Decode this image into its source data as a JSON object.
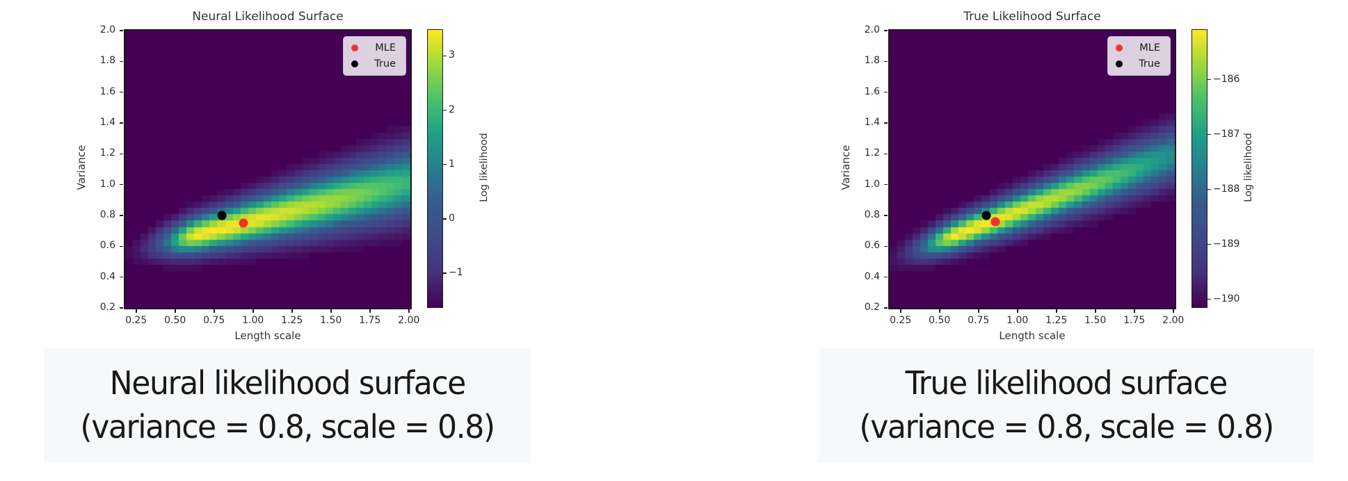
{
  "colormap": {
    "name": "viridis",
    "stops": [
      [
        0,
        "#440154"
      ],
      [
        0.13,
        "#46327e"
      ],
      [
        0.25,
        "#3f4a8a"
      ],
      [
        0.38,
        "#365c8d"
      ],
      [
        0.5,
        "#277f8e"
      ],
      [
        0.63,
        "#1fa187"
      ],
      [
        0.75,
        "#4ac16d"
      ],
      [
        0.88,
        "#a0da39"
      ],
      [
        1,
        "#fde725"
      ]
    ]
  },
  "chart_data": [
    {
      "type": "heatmap",
      "title": "Neural Likelihood Surface",
      "xlabel": "Length scale",
      "ylabel": "Variance",
      "xlim": [
        0.18,
        2.01
      ],
      "ylim": [
        0.2,
        2.0
      ],
      "x_ticks": [
        {
          "value": 0.25,
          "label": "0.25"
        },
        {
          "value": 0.5,
          "label": "0.50"
        },
        {
          "value": 0.75,
          "label": "0.75"
        },
        {
          "value": 1.0,
          "label": "1.00"
        },
        {
          "value": 1.25,
          "label": "1.25"
        },
        {
          "value": 1.5,
          "label": "1.50"
        },
        {
          "value": 1.75,
          "label": "1.75"
        },
        {
          "value": 2.0,
          "label": "2.00"
        }
      ],
      "y_ticks": [
        {
          "value": 0.2,
          "label": "0.2"
        },
        {
          "value": 0.4,
          "label": "0.4"
        },
        {
          "value": 0.6,
          "label": "0.6"
        },
        {
          "value": 0.8,
          "label": "0.8"
        },
        {
          "value": 1.0,
          "label": "1.0"
        },
        {
          "value": 1.2,
          "label": "1.2"
        },
        {
          "value": 1.4,
          "label": "1.4"
        },
        {
          "value": 1.6,
          "label": "1.6"
        },
        {
          "value": 1.8,
          "label": "1.8"
        },
        {
          "value": 2.0,
          "label": "2.0"
        }
      ],
      "legend": [
        {
          "label": "MLE",
          "color": "#ee352b"
        },
        {
          "label": "True",
          "color": "#000000"
        }
      ],
      "markers": [
        {
          "name": "MLE",
          "x": 0.94,
          "y": 0.75,
          "color": "#ee352b"
        },
        {
          "name": "True",
          "x": 0.8,
          "y": 0.8,
          "color": "#000000"
        }
      ],
      "colorbar": {
        "label": "Log likelihood",
        "vmin": -1.63,
        "vmax": 3.47,
        "ticks": [
          {
            "value": 3,
            "label": "3"
          },
          {
            "value": 2,
            "label": "2"
          },
          {
            "value": 1,
            "label": "1"
          },
          {
            "value": 0,
            "label": "0"
          },
          {
            "value": -1,
            "label": "−1"
          }
        ]
      },
      "grid": {
        "nx": 37,
        "ny": 44
      },
      "surface": {
        "v_intercept": 0.52,
        "v_slope": 0.25,
        "sigma0": 0.047,
        "sigma_slope": 0.0515,
        "peak_l": 0.66,
        "tip_sigma": 0.17,
        "right_decay": 0.167
      },
      "caption": {
        "line1": "Neural likelihood surface",
        "line2": "(variance = 0.8, scale = 0.8)"
      }
    },
    {
      "type": "heatmap",
      "title": "True Likelihood Surface",
      "xlabel": "Length scale",
      "ylabel": "Variance",
      "xlim": [
        0.18,
        2.01
      ],
      "ylim": [
        0.2,
        2.0
      ],
      "x_ticks": [
        {
          "value": 0.25,
          "label": "0.25"
        },
        {
          "value": 0.5,
          "label": "0.50"
        },
        {
          "value": 0.75,
          "label": "0.75"
        },
        {
          "value": 1.0,
          "label": "1.00"
        },
        {
          "value": 1.25,
          "label": "1.25"
        },
        {
          "value": 1.5,
          "label": "1.50"
        },
        {
          "value": 1.75,
          "label": "1.75"
        },
        {
          "value": 2.0,
          "label": "2.00"
        }
      ],
      "y_ticks": [
        {
          "value": 0.2,
          "label": "0.2"
        },
        {
          "value": 0.4,
          "label": "0.4"
        },
        {
          "value": 0.6,
          "label": "0.6"
        },
        {
          "value": 0.8,
          "label": "0.8"
        },
        {
          "value": 1.0,
          "label": "1.0"
        },
        {
          "value": 1.2,
          "label": "1.2"
        },
        {
          "value": 1.4,
          "label": "1.4"
        },
        {
          "value": 1.6,
          "label": "1.6"
        },
        {
          "value": 1.8,
          "label": "1.8"
        },
        {
          "value": 2.0,
          "label": "2.0"
        }
      ],
      "legend": [
        {
          "label": "MLE",
          "color": "#ee352b"
        },
        {
          "label": "True",
          "color": "#000000"
        }
      ],
      "markers": [
        {
          "name": "MLE",
          "x": 0.86,
          "y": 0.76,
          "color": "#ee352b"
        },
        {
          "name": "True",
          "x": 0.8,
          "y": 0.8,
          "color": "#000000"
        }
      ],
      "colorbar": {
        "label": "Log likelihood",
        "vmin": -190.15,
        "vmax": -185.1,
        "ticks": [
          {
            "value": -186,
            "label": "−186"
          },
          {
            "value": -187,
            "label": "−187"
          },
          {
            "value": -188,
            "label": "−188"
          },
          {
            "value": -189,
            "label": "−189"
          },
          {
            "value": -190,
            "label": "−190"
          }
        ]
      },
      "grid": {
        "nx": 37,
        "ny": 44
      },
      "surface": {
        "v_intercept": 0.454,
        "v_slope": 0.373,
        "sigma0": 0.049,
        "sigma_slope": 0.033,
        "peak_l": 0.62,
        "tip_sigma": 0.17,
        "right_decay": 0.236
      },
      "caption": {
        "line1": "True likelihood surface",
        "line2": "(variance = 0.8, scale = 0.8)"
      }
    }
  ]
}
